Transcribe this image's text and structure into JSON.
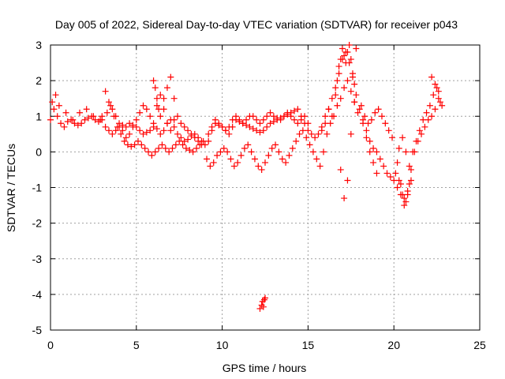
{
  "chart_data": {
    "type": "scatter",
    "title": "Day 005 of 2022, Sidereal Day-to-day VTEC variation (SDTVAR) for receiver p043",
    "xlabel": "GPS time / hours",
    "ylabel": "SDTVAR / TECUs",
    "xlim": [
      0,
      25
    ],
    "ylim": [
      -5,
      3
    ],
    "xticks": [
      "0",
      "5",
      "10",
      "15",
      "20",
      "25"
    ],
    "yticks": [
      "3",
      "2",
      "1",
      "0",
      "-1",
      "-2",
      "-3",
      "-4",
      "-5"
    ],
    "grid": true,
    "marker": "+",
    "color": "#ff0000",
    "series": [
      {
        "name": "SDTVAR",
        "x": [
          0.0,
          0.2,
          0.4,
          0.6,
          0.8,
          1.0,
          1.2,
          1.4,
          1.6,
          1.8,
          2.0,
          2.2,
          2.4,
          2.6,
          2.8,
          3.0,
          3.2,
          3.4,
          3.6,
          3.8,
          4.0,
          4.2,
          4.4,
          4.6,
          4.8,
          5.0,
          5.2,
          5.4,
          5.6,
          5.8,
          6.0,
          6.2,
          6.4,
          6.6,
          6.8,
          7.0,
          7.2,
          7.4,
          7.6,
          7.8,
          8.0,
          8.2,
          8.4,
          8.6,
          8.8,
          9.0,
          9.2,
          9.4,
          9.6,
          9.8,
          10.0,
          10.2,
          10.4,
          10.6,
          10.8,
          11.0,
          11.2,
          11.4,
          11.6,
          11.8,
          12.0,
          12.2,
          12.4,
          12.6,
          12.8,
          13.0,
          13.2,
          13.4,
          13.6,
          13.8,
          14.0,
          14.2,
          14.4,
          14.6,
          14.8,
          15.0,
          15.2,
          15.4,
          15.6,
          15.8,
          16.0,
          16.2,
          16.4,
          16.6,
          16.8,
          17.0,
          17.2,
          17.4,
          17.6,
          17.8,
          18.0,
          18.2,
          18.4,
          18.6,
          18.8,
          19.0,
          19.2,
          19.4,
          19.6,
          19.8,
          20.0,
          20.2,
          20.4,
          20.6,
          20.8,
          21.0,
          21.2,
          21.4,
          21.6,
          21.8,
          22.0,
          22.2,
          22.4,
          22.6,
          22.8,
          0.1,
          0.3,
          0.5,
          0.9,
          1.3,
          1.7,
          2.1,
          2.5,
          2.9,
          3.3,
          3.5,
          3.7,
          3.9,
          4.1,
          4.3,
          4.5,
          4.7,
          4.9,
          5.1,
          5.3,
          5.5,
          5.7,
          5.9,
          6.1,
          6.3,
          6.5,
          6.7,
          6.9,
          7.1,
          7.3,
          7.5,
          7.7,
          7.9,
          8.1,
          8.3,
          8.5,
          8.7,
          8.9,
          9.1,
          9.3,
          9.5,
          9.7,
          9.9,
          10.1,
          10.3,
          10.5,
          10.7,
          10.9,
          11.1,
          11.3,
          11.5,
          11.7,
          11.9,
          12.1,
          12.3,
          12.5,
          12.7,
          12.9,
          13.1,
          13.3,
          13.5,
          13.7,
          13.9,
          14.1,
          14.3,
          14.5,
          14.7,
          14.9,
          15.1,
          15.3,
          15.5,
          15.7,
          15.9,
          16.1,
          16.3,
          16.5,
          16.7,
          16.9,
          17.1,
          17.3,
          17.5,
          17.7,
          17.9,
          18.1,
          18.3,
          18.5,
          18.7,
          18.9,
          19.1,
          19.3,
          19.5,
          19.7,
          19.9,
          20.1,
          20.3,
          20.5,
          20.7,
          20.9,
          21.1,
          21.3,
          21.5,
          21.7,
          21.9,
          22.1,
          22.3,
          22.5,
          22.7,
          3.0,
          3.2,
          3.4,
          3.6,
          3.8,
          4.0,
          4.2,
          4.4,
          4.6,
          4.8,
          5.0,
          5.2,
          5.4,
          5.6,
          5.8,
          6.0,
          6.2,
          6.4,
          6.6,
          6.8,
          7.0,
          7.2,
          7.4,
          7.6,
          7.8,
          8.0,
          8.2,
          8.4,
          8.6,
          8.8,
          9.2,
          9.4,
          9.6,
          9.8,
          10.0,
          10.2,
          10.4,
          10.6,
          10.8,
          11.0,
          11.2,
          11.4,
          11.6,
          11.8,
          12.0,
          12.2,
          12.4,
          12.6,
          12.8,
          13.0,
          13.2,
          13.4,
          13.6,
          13.8,
          14.0,
          14.2,
          14.4,
          14.6,
          14.8,
          15.0,
          6.0,
          6.1,
          6.2,
          6.3,
          6.4,
          6.6,
          6.8,
          7.0,
          7.2,
          12.2,
          12.3,
          12.35,
          12.4,
          12.45,
          12.5,
          16.6,
          16.7,
          16.8,
          16.9,
          17.0,
          17.1,
          17.2,
          17.3,
          17.4,
          17.5,
          17.6,
          17.7,
          17.8,
          16.9,
          17.1,
          17.3,
          17.5,
          17.7,
          18.2,
          18.4,
          18.6,
          18.8,
          19.0,
          20.2,
          20.4,
          20.6,
          20.8,
          21.0,
          20.3,
          20.5,
          20.7,
          20.9,
          22.2,
          22.4,
          22.6,
          16.2,
          16.4,
          15.8,
          16.0
        ],
        "y": [
          0.9,
          1.2,
          1.0,
          0.8,
          0.7,
          0.85,
          0.9,
          0.8,
          0.75,
          0.8,
          0.9,
          0.95,
          1.0,
          0.9,
          0.85,
          0.9,
          0.7,
          0.6,
          0.5,
          0.6,
          0.7,
          0.75,
          0.7,
          0.8,
          0.75,
          0.7,
          0.6,
          0.5,
          0.55,
          0.6,
          0.7,
          0.65,
          0.5,
          0.6,
          0.8,
          0.9,
          0.7,
          0.5,
          0.4,
          0.3,
          0.35,
          0.45,
          0.5,
          0.4,
          0.3,
          0.2,
          0.5,
          0.7,
          0.8,
          0.75,
          0.7,
          0.6,
          0.5,
          0.7,
          0.9,
          0.85,
          0.8,
          0.75,
          0.7,
          0.65,
          0.6,
          0.55,
          0.6,
          0.7,
          0.8,
          0.85,
          0.9,
          0.95,
          1.0,
          1.05,
          1.1,
          1.15,
          1.2,
          1.0,
          0.8,
          0.6,
          0.5,
          0.4,
          0.5,
          0.7,
          1.0,
          1.2,
          1.5,
          1.8,
          2.2,
          2.6,
          2.8,
          2.5,
          2.1,
          1.6,
          1.2,
          0.9,
          0.6,
          0.3,
          0.1,
          0.0,
          -0.2,
          -0.4,
          -0.6,
          -0.7,
          -0.8,
          -1.0,
          -1.2,
          -1.3,
          -1.1,
          -0.5,
          0.0,
          0.3,
          0.5,
          0.7,
          0.9,
          1.0,
          1.2,
          1.5,
          1.3,
          1.4,
          1.6,
          1.3,
          1.1,
          0.9,
          1.1,
          1.2,
          1.0,
          0.9,
          1.1,
          1.3,
          1.0,
          0.7,
          0.5,
          0.3,
          0.2,
          0.15,
          0.2,
          0.3,
          0.2,
          0.1,
          0.0,
          -0.1,
          0.0,
          0.1,
          0.2,
          0.1,
          0.0,
          0.1,
          0.2,
          0.3,
          0.2,
          0.1,
          0.05,
          0.0,
          0.1,
          0.2,
          0.3,
          -0.2,
          -0.4,
          -0.3,
          -0.1,
          0.0,
          0.1,
          0.0,
          -0.2,
          -0.4,
          -0.3,
          -0.1,
          0.1,
          0.2,
          0.0,
          -0.2,
          -0.4,
          -0.5,
          -0.3,
          -0.1,
          0.1,
          0.2,
          0.0,
          -0.2,
          -0.3,
          -0.1,
          0.1,
          0.3,
          0.5,
          0.6,
          0.4,
          0.2,
          0.0,
          -0.2,
          -0.4,
          0.0,
          0.5,
          0.8,
          1.0,
          1.3,
          1.5,
          1.8,
          2.0,
          1.7,
          1.4,
          1.1,
          1.3,
          1.0,
          0.8,
          0.9,
          1.1,
          1.2,
          1.0,
          0.8,
          0.6,
          0.4,
          -0.6,
          -0.8,
          -1.2,
          -1.4,
          -0.9,
          0.0,
          0.3,
          0.6,
          0.9,
          1.1,
          1.3,
          1.6,
          1.8,
          1.4,
          1.0,
          1.7,
          1.4,
          1.2,
          1.0,
          0.8,
          0.6,
          0.4,
          0.5,
          0.7,
          0.9,
          1.1,
          1.3,
          1.2,
          1.0,
          0.8,
          1.3,
          1.6,
          1.2,
          0.8,
          0.6,
          0.9,
          1.0,
          0.8,
          0.7,
          0.6,
          0.5,
          0.4,
          0.3,
          0.2,
          0.3,
          0.6,
          0.9,
          0.8,
          0.7,
          0.6,
          0.7,
          0.9,
          1.0,
          0.9,
          0.8,
          0.9,
          1.0,
          1.0,
          0.9,
          0.8,
          0.9,
          1.0,
          1.1,
          1.0,
          0.95,
          0.9,
          1.0,
          1.1,
          1.0,
          0.9,
          0.8,
          0.9,
          1.0,
          0.8,
          2.0,
          1.8,
          1.5,
          1.2,
          1.0,
          1.5,
          1.8,
          2.1,
          1.5,
          -4.4,
          -4.3,
          -4.2,
          -4.35,
          -4.15,
          -4.1,
          1.6,
          2.0,
          2.4,
          2.6,
          2.9,
          2.7,
          2.5,
          2.8,
          3.0,
          2.6,
          2.2,
          1.9,
          2.9,
          -0.5,
          -1.3,
          -0.8,
          0.5,
          1.4,
          0.8,
          0.4,
          0.0,
          -0.3,
          -0.6,
          -0.3,
          -0.9,
          -1.5,
          -1.2,
          -0.8,
          0.1,
          0.4,
          0.0,
          -0.4,
          2.1,
          1.9,
          1.7,
          1.2,
          1.0,
          0.6,
          0.8
        ]
      }
    ]
  }
}
